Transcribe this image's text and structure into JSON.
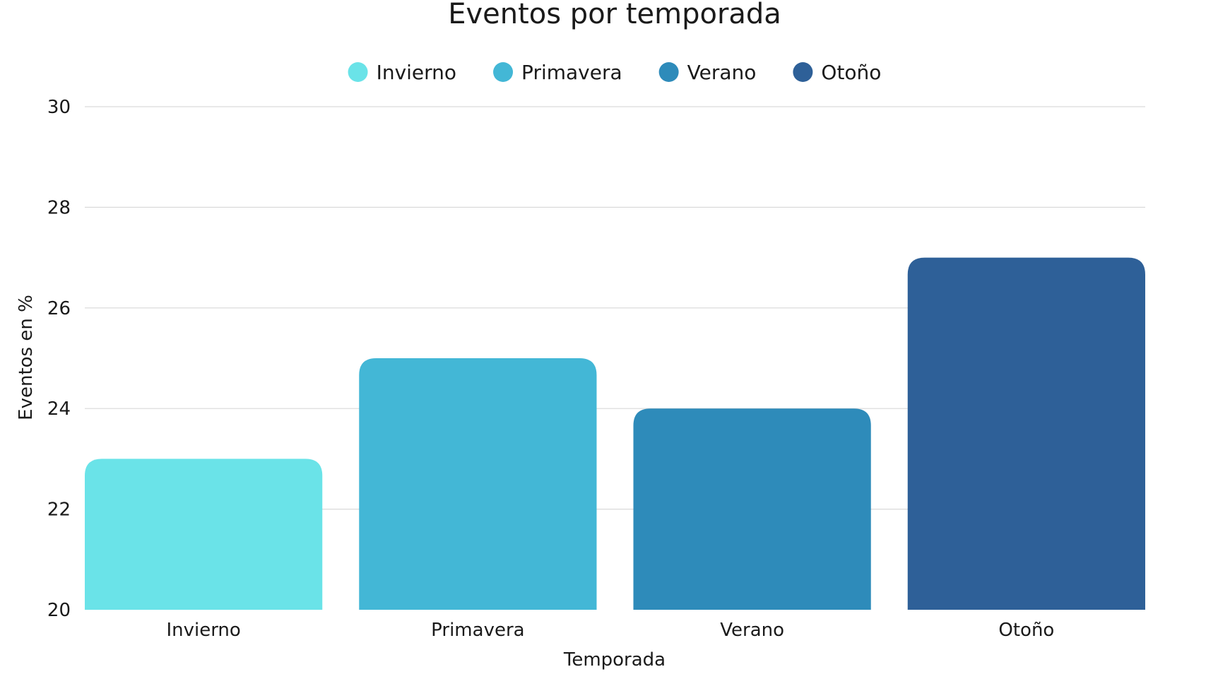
{
  "chart_data": {
    "type": "bar",
    "title": "Eventos por temporada",
    "xlabel": "Temporada",
    "ylabel": "Eventos en %",
    "categories": [
      "Invierno",
      "Primavera",
      "Verano",
      "Otoño"
    ],
    "values": [
      23,
      25,
      24,
      27
    ],
    "colors": [
      "#6ae3e8",
      "#43b7d6",
      "#2e8bba",
      "#2e6098"
    ],
    "ylim": [
      20,
      30
    ],
    "yticks": [
      20,
      22,
      24,
      26,
      28,
      30
    ],
    "grid": true,
    "legend": {
      "position": "top",
      "entries": [
        "Invierno",
        "Primavera",
        "Verano",
        "Otoño"
      ]
    }
  }
}
